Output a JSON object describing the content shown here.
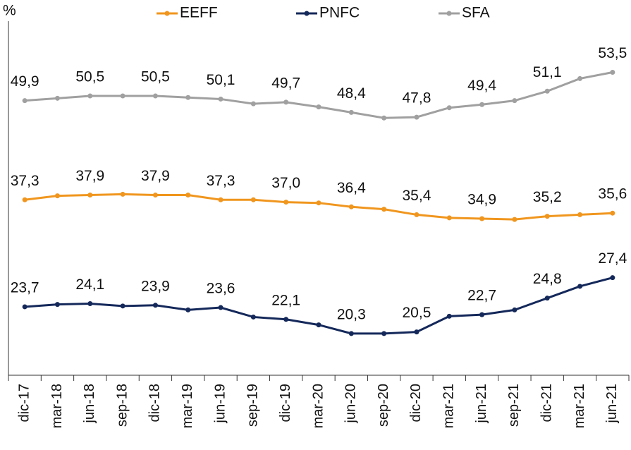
{
  "chart_data": {
    "type": "line",
    "y_axis_label": "%",
    "categories": [
      "dic-17",
      "mar-18",
      "jun-18",
      "sep-18",
      "dic-18",
      "mar-19",
      "jun-19",
      "sep-19",
      "dic-19",
      "mar-20",
      "jun-20",
      "sep-20",
      "dic-20",
      "mar-21",
      "jun-21",
      "sep-21",
      "dic-21",
      "mar-21",
      "jun-21"
    ],
    "ylim": [
      15,
      60
    ],
    "legend": "top",
    "series": [
      {
        "name": "EEFF",
        "color": "#f0961e",
        "values": [
          37.3,
          37.8,
          37.9,
          38.0,
          37.9,
          37.9,
          37.3,
          37.3,
          37.0,
          36.9,
          36.4,
          36.1,
          35.4,
          35.0,
          34.9,
          34.8,
          35.2,
          35.4,
          35.6
        ],
        "value_labels": [
          "37,3",
          null,
          "37,9",
          null,
          "37,9",
          null,
          "37,3",
          null,
          "37,0",
          null,
          "36,4",
          null,
          "35,4",
          null,
          "34,9",
          null,
          "35,2",
          null,
          "35,6"
        ]
      },
      {
        "name": "PNFC",
        "color": "#14285a",
        "values": [
          23.7,
          24.0,
          24.1,
          23.8,
          23.9,
          23.3,
          23.6,
          22.4,
          22.1,
          21.4,
          20.3,
          20.3,
          20.5,
          22.5,
          22.7,
          23.3,
          24.8,
          26.3,
          27.4
        ],
        "value_labels": [
          "23,7",
          null,
          "24,1",
          null,
          "23,9",
          null,
          "23,6",
          null,
          "22,1",
          null,
          "20,3",
          null,
          "20,5",
          null,
          "22,7",
          null,
          "24,8",
          null,
          "27,4"
        ]
      },
      {
        "name": "SFA",
        "color": "#a0a0a0",
        "values": [
          49.9,
          50.2,
          50.5,
          50.5,
          50.5,
          50.3,
          50.1,
          49.5,
          49.7,
          49.1,
          48.4,
          47.7,
          47.8,
          49.0,
          49.4,
          49.9,
          51.1,
          52.7,
          53.5
        ],
        "value_labels": [
          "49,9",
          null,
          "50,5",
          null,
          "50,5",
          null,
          "50,1",
          null,
          "49,7",
          null,
          "48,4",
          null,
          "47,8",
          null,
          "49,4",
          null,
          "51,1",
          null,
          "53,5"
        ]
      }
    ]
  }
}
